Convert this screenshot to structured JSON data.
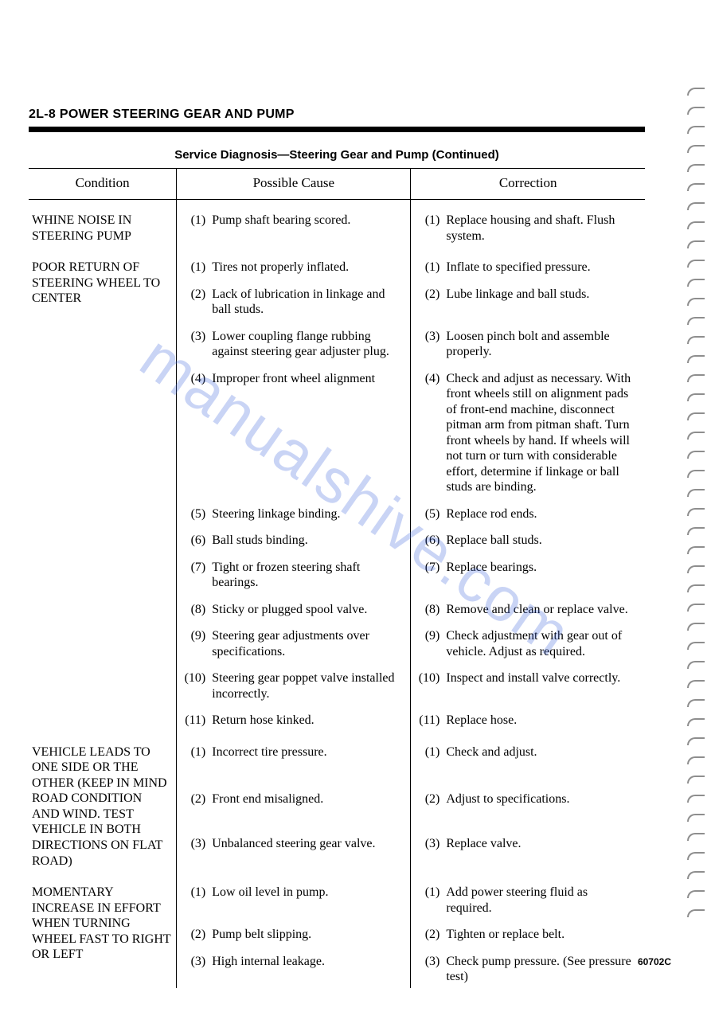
{
  "page_header": "2L-8   POWER STEERING GEAR AND PUMP",
  "table_title": "Service Diagnosis—Steering Gear and Pump (Continued)",
  "columns": {
    "condition": "Condition",
    "cause": "Possible Cause",
    "correction": "Correction"
  },
  "ref_code": "60702C",
  "watermark": "manualshive.com",
  "sections": [
    {
      "condition": "WHINE NOISE IN STEERING PUMP",
      "rows": [
        {
          "n": "(1)",
          "cause": "Pump shaft bearing scored.",
          "cn": "(1)",
          "correction": "Replace housing and shaft. Flush system."
        }
      ]
    },
    {
      "condition": "POOR RETURN OF STEERING WHEEL TO CENTER",
      "rows": [
        {
          "n": "(1)",
          "cause": "Tires not properly inflated.",
          "cn": "(1)",
          "correction": "Inflate to specified pressure."
        },
        {
          "n": "(2)",
          "cause": "Lack of lubrication in linkage and ball studs.",
          "cn": "(2)",
          "correction": "Lube linkage and ball studs."
        },
        {
          "n": "(3)",
          "cause": "Lower coupling flange rubbing against steering gear adjuster plug.",
          "cn": "(3)",
          "correction": "Loosen pinch bolt and assemble properly."
        },
        {
          "n": "(4)",
          "cause": "Improper front wheel alignment",
          "cn": "(4)",
          "correction": "Check and adjust as necessary. With front wheels still on alignment pads of front-end machine, disconnect pitman arm from pitman shaft. Turn front wheels by hand. If wheels will not turn or turn with considerable effort, determine if linkage or ball studs are binding."
        },
        {
          "n": "(5)",
          "cause": "Steering linkage binding.",
          "cn": "(5)",
          "correction": "Replace rod ends."
        },
        {
          "n": "(6)",
          "cause": "Ball studs binding.",
          "cn": "(6)",
          "correction": "Replace ball studs."
        },
        {
          "n": "(7)",
          "cause": "Tight or frozen steering shaft bearings.",
          "cn": "(7)",
          "correction": "Replace bearings."
        },
        {
          "n": "(8)",
          "cause": "Sticky or plugged spool valve.",
          "cn": "(8)",
          "correction": "Remove and clean or replace valve."
        },
        {
          "n": "(9)",
          "cause": "Steering gear adjustments over specifications.",
          "cn": "(9)",
          "correction": "Check adjustment with gear out of vehicle.  Adjust as required."
        },
        {
          "n": "(10)",
          "cause": "Steering gear poppet valve installed incorrectly.",
          "cn": "(10)",
          "correction": "Inspect and install valve correctly."
        },
        {
          "n": "(11)",
          "cause": "Return hose kinked.",
          "cn": "(11)",
          "correction": "Replace hose."
        }
      ]
    },
    {
      "condition": "VEHICLE LEADS TO ONE SIDE OR THE OTHER (KEEP IN MIND ROAD CONDITION AND WIND. TEST VEHICLE IN BOTH DIRECTIONS ON FLAT ROAD)",
      "rows": [
        {
          "n": "(1)",
          "cause": "Incorrect tire pressure.",
          "cn": "(1)",
          "correction": "Check and adjust."
        },
        {
          "n": "(2)",
          "cause": "Front end misaligned.",
          "cn": "(2)",
          "correction": "Adjust to specifications."
        },
        {
          "n": "(3)",
          "cause": "Unbalanced steering gear valve.",
          "cn": "(3)",
          "correction": "Replace valve."
        }
      ]
    },
    {
      "condition": "MOMENTARY INCREASE IN EFFORT WHEN TURNING WHEEL FAST TO RIGHT OR LEFT",
      "rows": [
        {
          "n": "(1)",
          "cause": "Low oil level in pump.",
          "cn": "(1)",
          "correction": "Add power steering fluid as required."
        },
        {
          "n": "(2)",
          "cause": "Pump belt slipping.",
          "cn": "(2)",
          "correction": "Tighten or replace belt."
        },
        {
          "n": "(3)",
          "cause": "High internal leakage.",
          "cn": "(3)",
          "correction": "Check pump pressure. (See pressure test)"
        }
      ]
    }
  ]
}
